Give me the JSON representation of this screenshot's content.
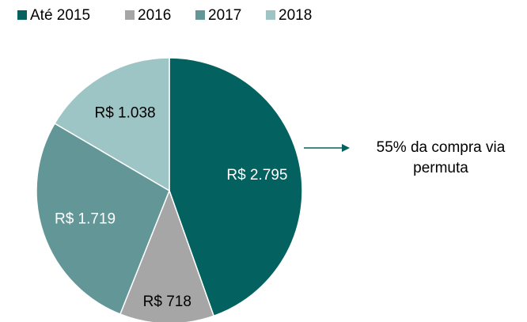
{
  "chart_data": {
    "type": "pie",
    "categories": [
      "Até 2015",
      "2016",
      "2017",
      "2018"
    ],
    "values": [
      2795,
      718,
      1719,
      1038
    ],
    "value_labels": [
      "R$ 2.795",
      "R$ 718",
      "R$ 1.719",
      "R$ 1.038"
    ],
    "colors": [
      "#03615f",
      "#a6a6a6",
      "#639797",
      "#9ec5c5"
    ],
    "annotation": "55% da compra via permuta",
    "legend": "top"
  }
}
